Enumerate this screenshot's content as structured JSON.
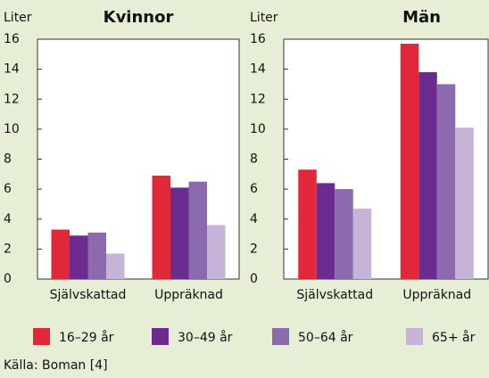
{
  "chart_data": [
    {
      "type": "bar",
      "title": "Kvinnor",
      "y_label": "Liter",
      "categories": [
        "Självskattad",
        "Uppräknad"
      ],
      "series": [
        {
          "values": [
            3.3,
            6.9
          ]
        },
        {
          "values": [
            2.9,
            6.1
          ]
        },
        {
          "values": [
            3.1,
            6.5
          ]
        },
        {
          "values": [
            1.7,
            3.6
          ]
        }
      ],
      "ylim": [
        0,
        16
      ],
      "yticks": [
        0,
        2,
        4,
        6,
        8,
        10,
        12,
        14,
        16
      ],
      "grid": false
    },
    {
      "type": "bar",
      "title": "Män",
      "y_label": "Liter",
      "categories": [
        "Självskattad",
        "Uppräknad"
      ],
      "series": [
        {
          "values": [
            7.3,
            15.7
          ]
        },
        {
          "values": [
            6.4,
            13.8
          ]
        },
        {
          "values": [
            6.0,
            13.0
          ]
        },
        {
          "values": [
            4.7,
            10.1
          ]
        }
      ],
      "ylim": [
        0,
        16
      ],
      "yticks": [
        0,
        2,
        4,
        6,
        8,
        10,
        12,
        14,
        16
      ],
      "grid": false
    }
  ],
  "legend": [
    {
      "name": "16–29 år",
      "color": "#e0283a"
    },
    {
      "name": "30–49 år",
      "color": "#6a2c8e"
    },
    {
      "name": "50–64 år",
      "color": "#8c6aae"
    },
    {
      "name": "65+ år",
      "color": "#c5b4d8"
    }
  ],
  "source": "Källa: Boman [4]"
}
